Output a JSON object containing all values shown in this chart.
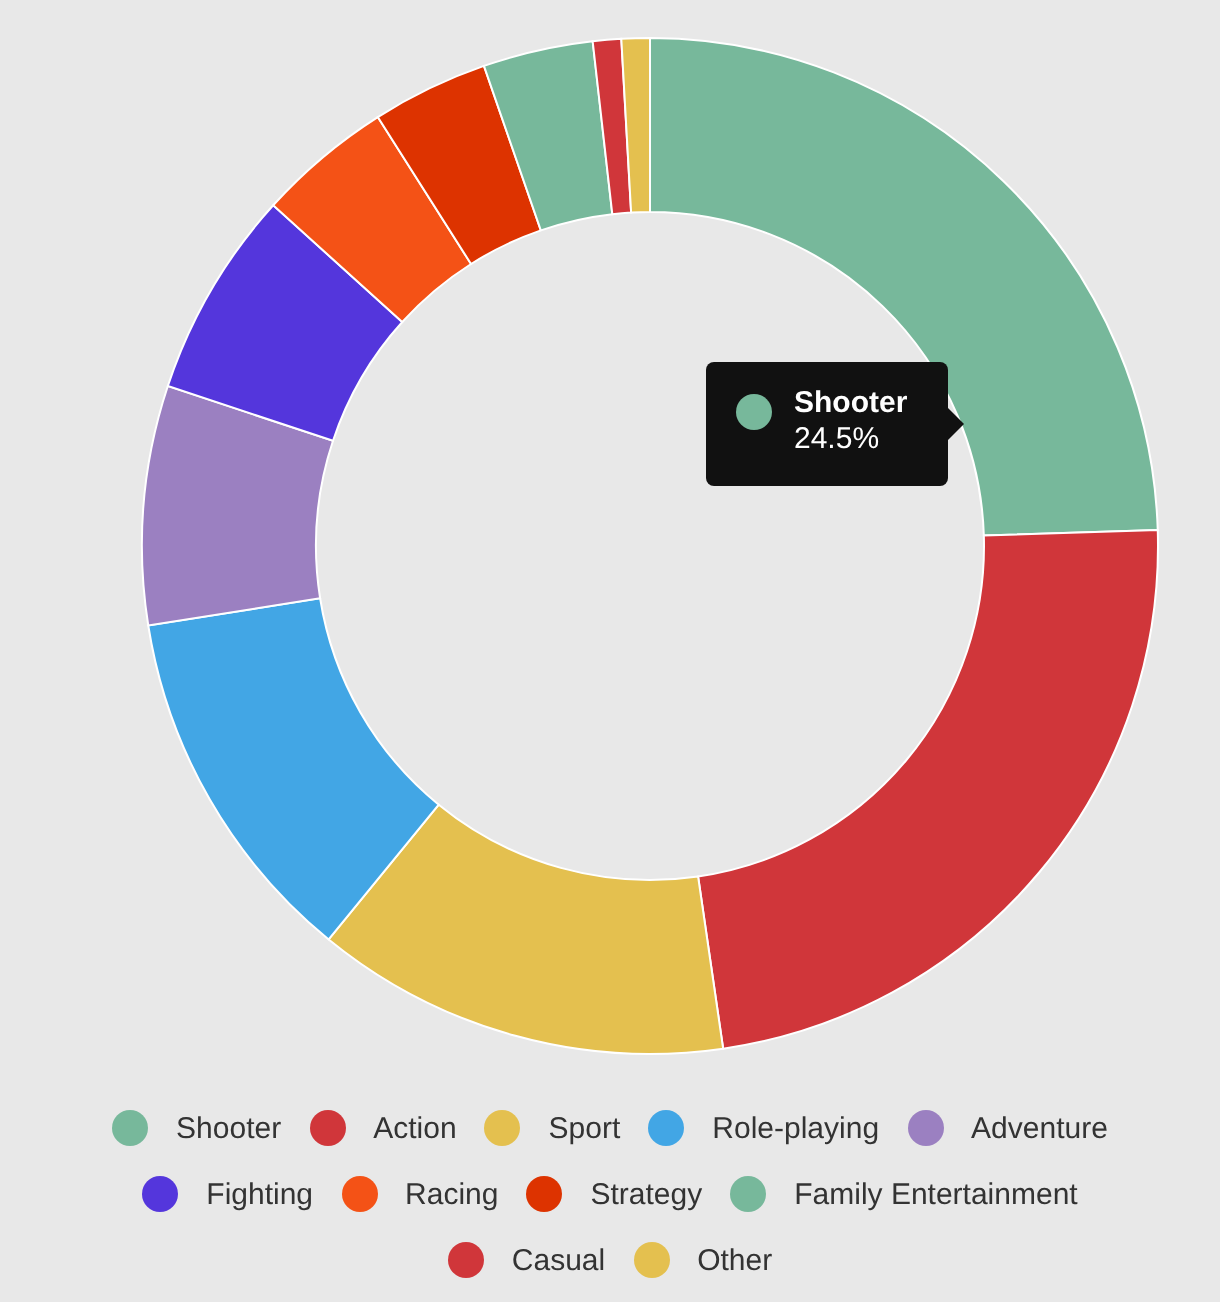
{
  "chart_data": {
    "type": "donut",
    "categories": [
      "Shooter",
      "Action",
      "Sport",
      "Role-playing",
      "Adventure",
      "Fighting",
      "Racing",
      "Strategy",
      "Family Entertainment",
      "Casual",
      "Other"
    ],
    "values": [
      24.5,
      23.2,
      13.2,
      11.6,
      7.6,
      6.6,
      4.3,
      3.7,
      3.5,
      0.9,
      0.9
    ],
    "colors": [
      "#77b89b",
      "#d0363a",
      "#e4c04f",
      "#42a6e5",
      "#9b80c1",
      "#5436dc",
      "#f45216",
      "#dd3300",
      "#77b89b",
      "#d0363a",
      "#e4c04f"
    ],
    "value_labels": [
      "24.5%",
      null,
      null,
      null,
      null,
      null,
      null,
      null,
      null,
      null,
      null
    ],
    "legend": "bottom"
  }
}
